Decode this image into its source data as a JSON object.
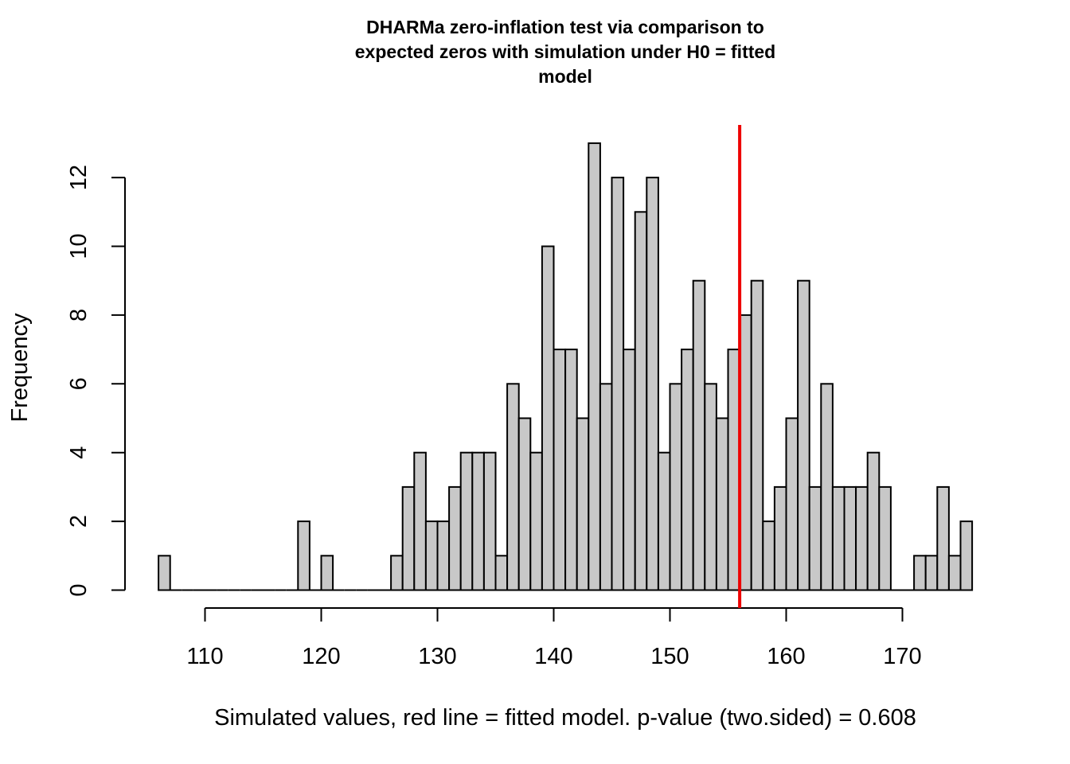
{
  "chart_data": {
    "type": "bar",
    "title_lines": [
      "DHARMa zero-inflation test via comparison to",
      "expected zeros with simulation under H0 = fitted",
      "model"
    ],
    "xlabel": "Simulated values, red line = fitted model. p-value (two.sided) = 0.608",
    "ylabel": "Frequency",
    "bin_start": 106,
    "bin_width": 1,
    "counts": [
      1,
      0,
      0,
      0,
      0,
      0,
      0,
      0,
      0,
      0,
      0,
      0,
      2,
      0,
      1,
      0,
      0,
      0,
      0,
      0,
      1,
      3,
      4,
      2,
      2,
      3,
      4,
      4,
      4,
      1,
      6,
      5,
      4,
      10,
      7,
      7,
      5,
      13,
      6,
      12,
      7,
      11,
      12,
      4,
      6,
      7,
      9,
      6,
      5,
      7,
      8,
      9,
      2,
      3,
      5,
      9,
      3,
      6,
      3,
      3,
      3,
      4,
      3,
      0,
      0,
      1,
      1,
      3,
      1,
      2
    ],
    "xlim": [
      106,
      176
    ],
    "x_ticks": [
      110,
      120,
      130,
      140,
      150,
      160,
      170
    ],
    "ylim": [
      0,
      13
    ],
    "y_ticks": [
      0,
      2,
      4,
      6,
      8,
      10,
      12
    ],
    "observed_value": 156,
    "observed_color": "#ee0000",
    "bar_color": "#c8c8c8",
    "grid": false,
    "p_value": 0.608
  }
}
